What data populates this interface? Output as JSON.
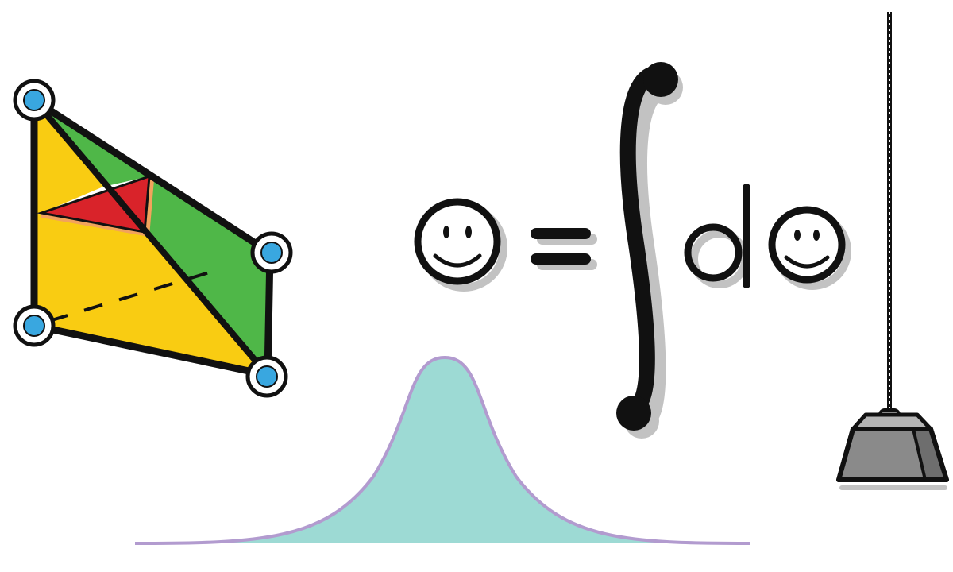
{
  "illustration": {
    "equation": {
      "equals_symbol": "=",
      "integral_symbol": "∫",
      "differential_letter": "d"
    },
    "icons": [
      "triangulated-polygon-icon",
      "smiley-face-icon",
      "equals-sign-icon",
      "integral-sign-icon",
      "bell-curve-icon",
      "hanging-weight-icon"
    ],
    "colors": {
      "triangle_yellow": "#f9cc12",
      "triangle_green": "#4fb748",
      "triangle_red": "#d9232a",
      "triangle_orange_edge": "#f2a35c",
      "vertex_blue": "#39a7e0",
      "bell_fill": "#9ddad4",
      "bell_outline": "#b29bcf",
      "weight_gray": "#8a8a8a",
      "weight_top": "#b5b5b5",
      "ink": "#111111",
      "shadow": "#c2c2c2"
    }
  }
}
